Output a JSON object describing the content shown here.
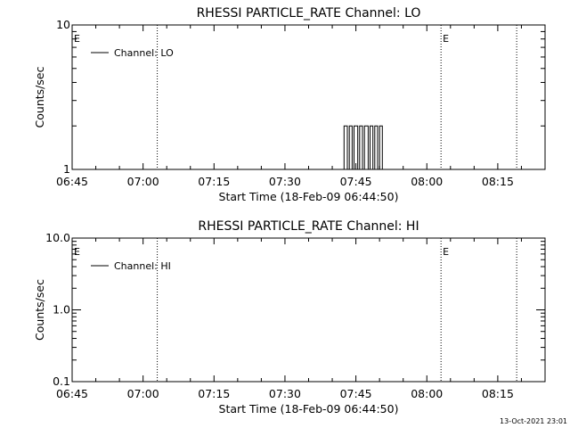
{
  "footer": {
    "timestamp": "13-Oct-2021 23:01"
  },
  "chart_data": [
    {
      "type": "line",
      "title": "RHESSI PARTICLE_RATE Channel: LO",
      "xlabel": "Start Time (18-Feb-09 06:44:50)",
      "ylabel": "Counts/sec",
      "y_scale": "log",
      "ylim": [
        1,
        10
      ],
      "yticks": [
        {
          "value": 1,
          "label": "1"
        },
        {
          "value": 10,
          "label": "10"
        }
      ],
      "xlim": [
        "06:45",
        "08:25"
      ],
      "xticks": [
        "06:45",
        "07:00",
        "07:15",
        "07:30",
        "07:45",
        "08:00",
        "08:15"
      ],
      "legend": {
        "position": "top-left",
        "entries": [
          "Channel: LO"
        ]
      },
      "markers": [
        {
          "time": "06:45",
          "label": "E",
          "dotted": false
        },
        {
          "time": "07:03",
          "label": "",
          "dotted": true
        },
        {
          "time": "08:03",
          "label": "E",
          "dotted": true
        },
        {
          "time": "08:19",
          "label": "",
          "dotted": true
        }
      ],
      "series": [
        {
          "name": "Channel: LO",
          "points": [
            [
              "07:42.5",
              1
            ],
            [
              "07:42.5",
              2
            ],
            [
              "07:43.2",
              2
            ],
            [
              "07:43.2",
              1
            ],
            [
              "07:43.6",
              1
            ],
            [
              "07:43.6",
              2
            ],
            [
              "07:44.2",
              2
            ],
            [
              "07:44.2",
              1
            ],
            [
              "07:44.6",
              1
            ],
            [
              "07:44.6",
              2
            ],
            [
              "07:45.4",
              2
            ],
            [
              "07:45.4",
              1
            ],
            [
              "07:45.8",
              1
            ],
            [
              "07:45.8",
              2
            ],
            [
              "07:46.4",
              2
            ],
            [
              "07:46.4",
              1
            ],
            [
              "07:46.8",
              1
            ],
            [
              "07:46.8",
              2
            ],
            [
              "07:47.6",
              2
            ],
            [
              "07:47.6",
              1
            ],
            [
              "07:48.0",
              1
            ],
            [
              "07:48.0",
              2
            ],
            [
              "07:48.6",
              2
            ],
            [
              "07:48.6",
              1
            ],
            [
              "07:49.0",
              1
            ],
            [
              "07:49.0",
              2
            ],
            [
              "07:49.6",
              2
            ],
            [
              "07:49.6",
              1
            ],
            [
              "07:50.0",
              1
            ],
            [
              "07:50.0",
              2
            ],
            [
              "07:50.6",
              2
            ],
            [
              "07:50.6",
              1
            ]
          ]
        }
      ]
    },
    {
      "type": "line",
      "title": "RHESSI PARTICLE_RATE Channel: HI",
      "xlabel": "Start Time (18-Feb-09 06:44:50)",
      "ylabel": "Counts/sec",
      "y_scale": "log",
      "ylim": [
        0.1,
        10
      ],
      "yticks": [
        {
          "value": 0.1,
          "label": "0.1"
        },
        {
          "value": 1,
          "label": "1.0"
        },
        {
          "value": 10,
          "label": "10.0"
        }
      ],
      "xlim": [
        "06:45",
        "08:25"
      ],
      "xticks": [
        "06:45",
        "07:00",
        "07:15",
        "07:30",
        "07:45",
        "08:00",
        "08:15"
      ],
      "legend": {
        "position": "top-left",
        "entries": [
          "Channel: HI"
        ]
      },
      "markers": [
        {
          "time": "06:45",
          "label": "E",
          "dotted": false
        },
        {
          "time": "07:03",
          "label": "",
          "dotted": true
        },
        {
          "time": "08:03",
          "label": "E",
          "dotted": true
        },
        {
          "time": "08:19",
          "label": "",
          "dotted": true
        }
      ],
      "series": [
        {
          "name": "Channel: HI",
          "points": []
        }
      ]
    }
  ]
}
